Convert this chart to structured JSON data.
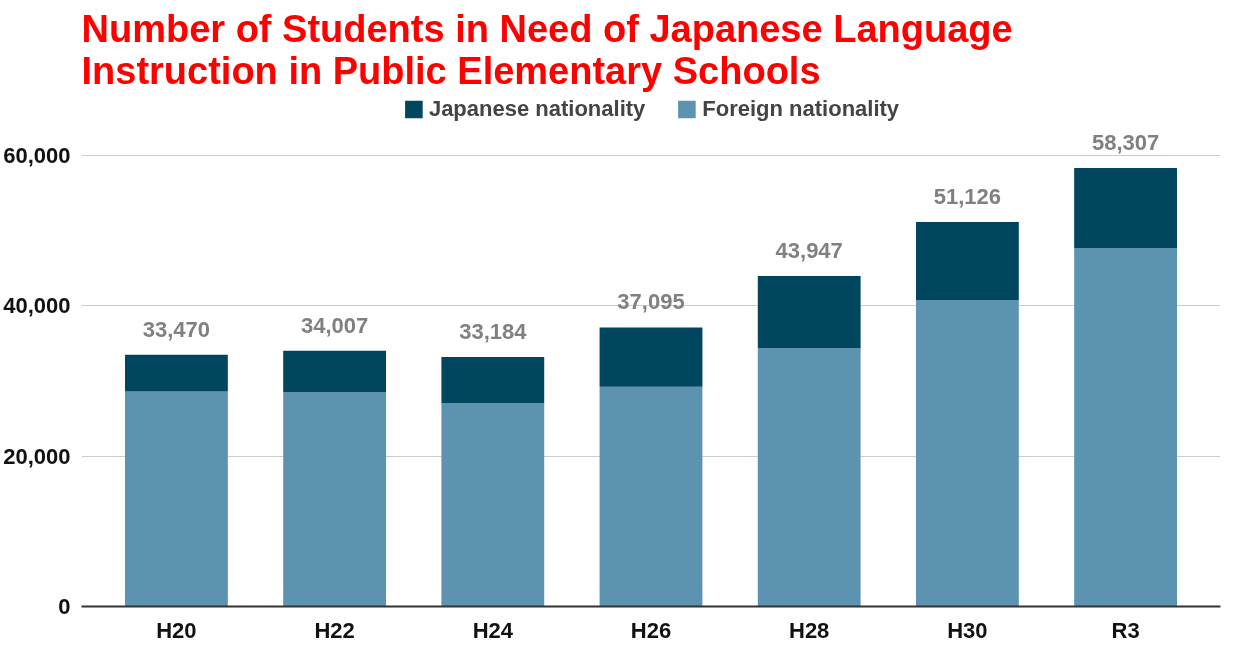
{
  "chart_data": {
    "type": "bar",
    "stacked": true,
    "title": "Number of Students in Need of Japanese Language\nInstruction in Public Elementary Schools",
    "categories": [
      "H20",
      "H22",
      "H24",
      "H26",
      "H28",
      "H30",
      "R3"
    ],
    "series": [
      {
        "name": "Foreign nationality",
        "color": "#5b93b0",
        "values": [
          28575,
          28511,
          27013,
          29198,
          34335,
          40755,
          47619
        ]
      },
      {
        "name": "Japanese nationality",
        "color": "#00465f",
        "values": [
          4895,
          5496,
          6171,
          7897,
          9612,
          10371,
          10688
        ]
      }
    ],
    "totals": [
      "33,470",
      "34,007",
      "33,184",
      "37,095",
      "43,947",
      "51,126",
      "58,307"
    ],
    "ylim": [
      0,
      60000
    ],
    "yticks": [
      {
        "value": 0,
        "label": "0"
      },
      {
        "value": 20000,
        "label": "20,000"
      },
      {
        "value": 40000,
        "label": "40,000"
      },
      {
        "value": 60000,
        "label": "60,000"
      }
    ],
    "grid": "y",
    "legend": "top"
  }
}
